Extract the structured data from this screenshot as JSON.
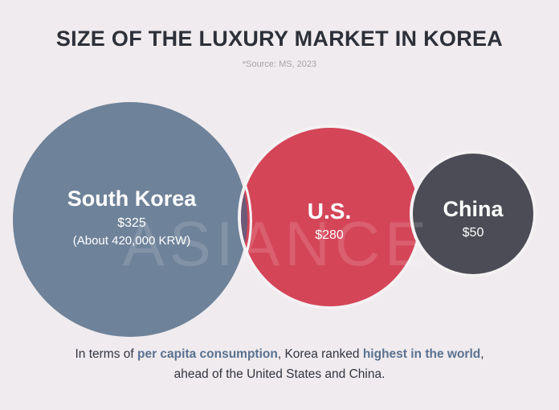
{
  "title": "SIZE OF THE LUXURY MARKET IN KOREA",
  "source": "*Source: MS, 2023",
  "watermark": "ASIANCE",
  "chart_data": {
    "type": "bubble",
    "title": "SIZE OF THE LUXURY MARKET IN KOREA",
    "unit": "USD per capita",
    "categories": [
      "South Korea",
      "U.S.",
      "China"
    ],
    "values": [
      325,
      280,
      50
    ],
    "labels": [
      {
        "name": "South Korea",
        "value": "$325",
        "note": "(About 420,000 KRW)"
      },
      {
        "name": "U.S.",
        "value": "$280"
      },
      {
        "name": "China",
        "value": "$50"
      }
    ],
    "colors": [
      "#6e8299",
      "#d44558",
      "#4b4c55"
    ]
  },
  "footer": {
    "p1": "In terms of ",
    "b1": "per capita consumption",
    "p2": ", Korea ranked ",
    "b2": "highest in the world",
    "p3": ",",
    "line2": "ahead of the United States and China."
  }
}
